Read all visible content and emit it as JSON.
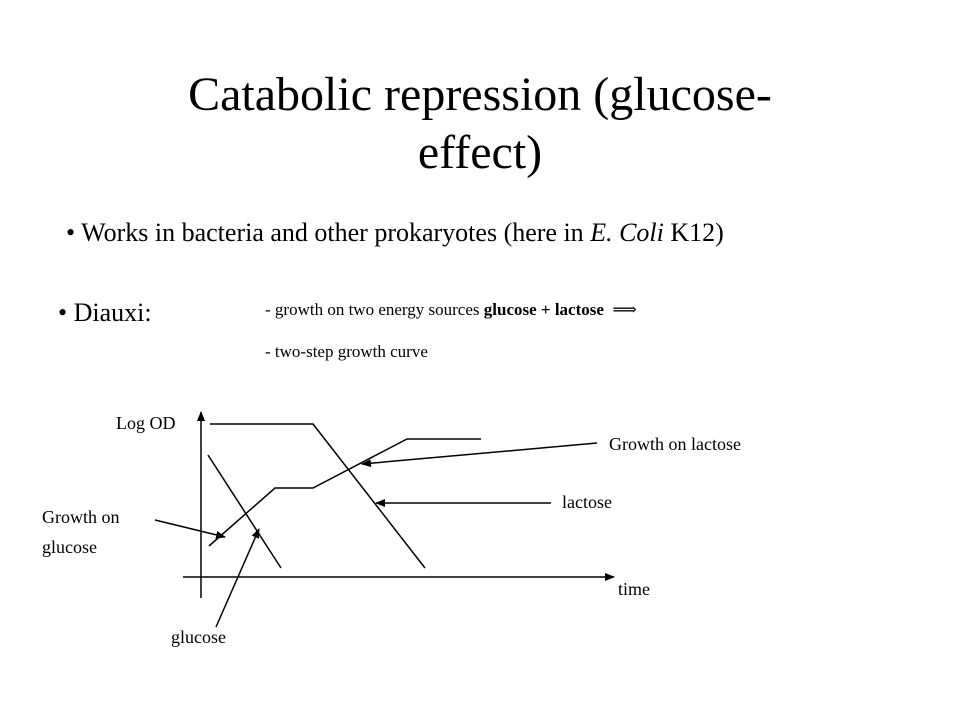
{
  "slide": {
    "title_line1": "Catabolic repression (glucose-",
    "title_line2": "effect)",
    "bullet_symbol": "•",
    "works": {
      "before": "Works in bacteria and other prokaryotes (here in ",
      "organism": "E. Coli",
      "after": " K12)"
    },
    "diauxi": "Diauxi:",
    "note1": {
      "prefix": "- growth on two energy sources ",
      "sources": "glucose + lactose",
      "arrow": "⟹"
    },
    "note2": "- two-step growth curve"
  },
  "diagram": {
    "y_axis_label": "Log OD",
    "x_axis_label": "time",
    "label_growth_lactose": "Growth on lactose",
    "label_lactose": "lactose",
    "label_growth_glucose_line1": "Growth on",
    "label_growth_glucose_line2": "glucose",
    "label_glucose": "glucose"
  }
}
